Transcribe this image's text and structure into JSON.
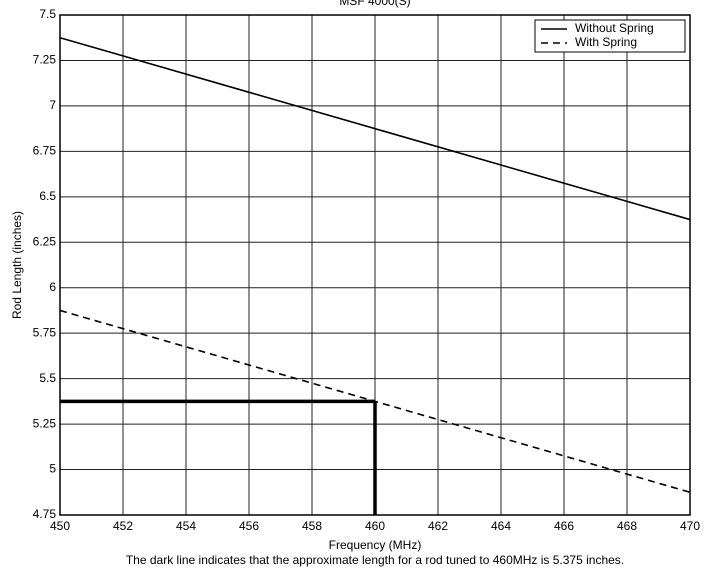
{
  "chart_data": {
    "type": "line",
    "title": "MSF 4000(S)",
    "x_label": "Frequency (MHz)",
    "y_label": "Rod Length (inches)",
    "caption": "The dark line indicates that the approximate length for a rod tuned to 460MHz is 5.375 inches.",
    "xlim": [
      450,
      470
    ],
    "xticks": [
      450,
      452,
      454,
      456,
      458,
      460,
      462,
      464,
      466,
      468,
      470
    ],
    "ylim": [
      4.75,
      7.5
    ],
    "yticks": [
      4.75,
      5,
      5.25,
      5.5,
      5.75,
      6,
      6.25,
      6.5,
      6.75,
      7,
      7.25,
      7.5
    ],
    "grid": true,
    "legend": "upper right",
    "series": [
      {
        "name": "Without Spring",
        "color": "#000000",
        "style": "solid",
        "x": [
          450,
          470
        ],
        "values": [
          7.375,
          6.375
        ]
      },
      {
        "name": "With Spring",
        "color": "#000000",
        "style": "dashed",
        "x": [
          450,
          470
        ],
        "values": [
          5.875,
          4.875
        ]
      }
    ],
    "marker": {
      "x": 460,
      "y": 5.375
    }
  }
}
